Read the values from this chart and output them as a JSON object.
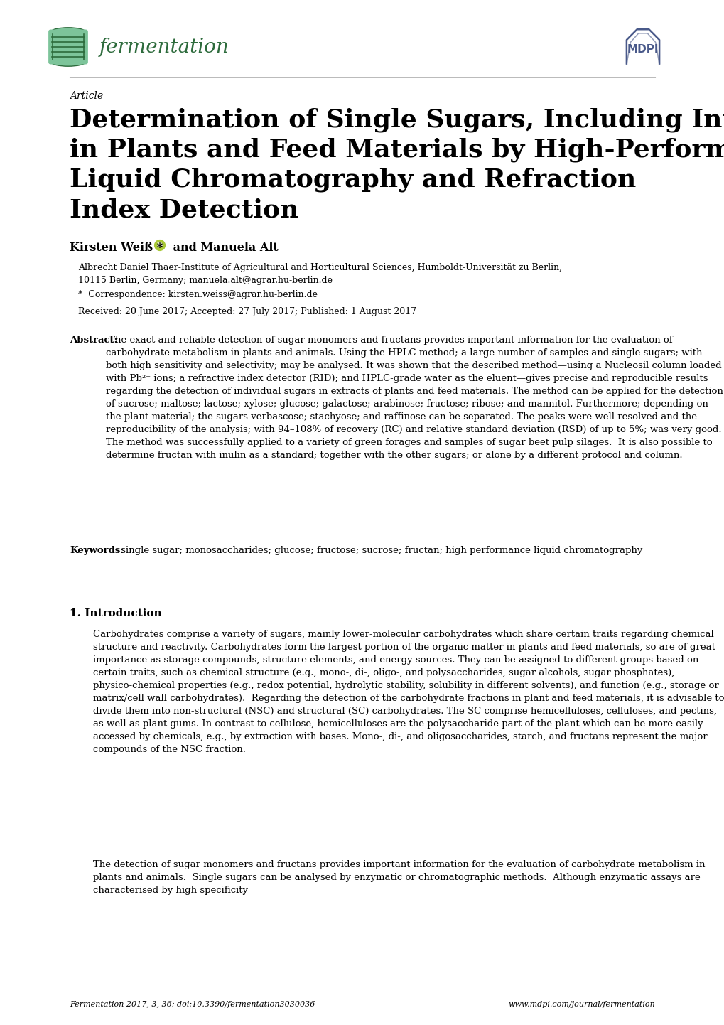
{
  "background_color": "#ffffff",
  "page_width": 10.2,
  "page_height": 14.42,
  "journal_name": "fermentation",
  "journal_color": "#2d6b3c",
  "mdpi_color": "#4a5a8a",
  "article_label": "Article",
  "title_line1": "Determination of Single Sugars, Including Inulin,",
  "title_line2": "in Plants and Feed Materials by High-Performance",
  "title_line3": "Liquid Chromatography and Refraction",
  "title_line4": "Index Detection",
  "author_part1": "Kirsten Weiß * ",
  "author_part2": " and Manuela Alt",
  "affiliation1": "Albrecht Daniel Thaer-Institute of Agricultural and Horticultural Sciences, Humboldt-Universität zu Berlin,",
  "affiliation2": "10115 Berlin, Germany; manuela.alt@agrar.hu-berlin.de",
  "correspondence": "*  Correspondence: kirsten.weiss@agrar.hu-berlin.de",
  "received": "Received: 20 June 2017; Accepted: 27 July 2017; Published: 1 August 2017",
  "abstract_label": "Abstract:",
  "abstract_text": " The exact and reliable detection of sugar monomers and fructans provides important information for the evaluation of carbohydrate metabolism in plants and animals. Using the HPLC method; a large number of samples and single sugars; with both high sensitivity and selectivity; may be analysed. It was shown that the described method—using a Nucleosil column loaded with Pb²⁺ ions; a refractive index detector (RID); and HPLC-grade water as the eluent—gives precise and reproducible results regarding the detection of individual sugars in extracts of plants and feed materials. The method can be applied for the detection of sucrose; maltose; lactose; xylose; glucose; galactose; arabinose; fructose; ribose; and mannitol. Furthermore; depending on the plant material; the sugars verbascose; stachyose; and raffinose can be separated. The peaks were well resolved and the reproducibility of the analysis; with 94–108% of recovery (RC) and relative standard deviation (RSD) of up to 5%; was very good. The method was successfully applied to a variety of green forages and samples of sugar beet pulp silages.  It is also possible to determine fructan with inulin as a standard; together with the other sugars; or alone by a different protocol and column.",
  "keywords_label": "Keywords:",
  "keywords_text": " single sugar; monosaccharides; glucose; fructose; sucrose; fructan; high performance liquid chromatography",
  "section1_title": "1. Introduction",
  "intro_para1": "Carbohydrates comprise a variety of sugars, mainly lower-molecular carbohydrates which share certain traits regarding chemical structure and reactivity. Carbohydrates form the largest portion of the organic matter in plants and feed materials, so are of great importance as storage compounds, structure elements, and energy sources. They can be assigned to different groups based on certain traits, such as chemical structure (e.g., mono-, di-, oligo-, and polysaccharides, sugar alcohols, sugar phosphates), physico-chemical properties (e.g., redox potential, hydrolytic stability, solubility in different solvents), and function (e.g., storage or matrix/cell wall carbohydrates).  Regarding the detection of the carbohydrate fractions in plant and feed materials, it is advisable to divide them into non-structural (NSC) and structural (SC) carbohydrates. The SC comprise hemicelluloses, celluloses, and pectins, as well as plant gums. In contrast to cellulose, hemicelluloses are the polysaccharide part of the plant which can be more easily accessed by chemicals, e.g., by extraction with bases. Mono-, di-, and oligosaccharides, starch, and fructans represent the major compounds of the NSC fraction.",
  "intro_para2": "The detection of sugar monomers and fructans provides important information for the evaluation of carbohydrate metabolism in plants and animals.  Single sugars can be analysed by enzymatic or chromatographic methods.  Although enzymatic assays are characterised by high specificity",
  "footer_left": "Fermentation 2017, 3, 36; doi:10.3390/fermentation3030036",
  "footer_right": "www.mdpi.com/journal/fermentation"
}
